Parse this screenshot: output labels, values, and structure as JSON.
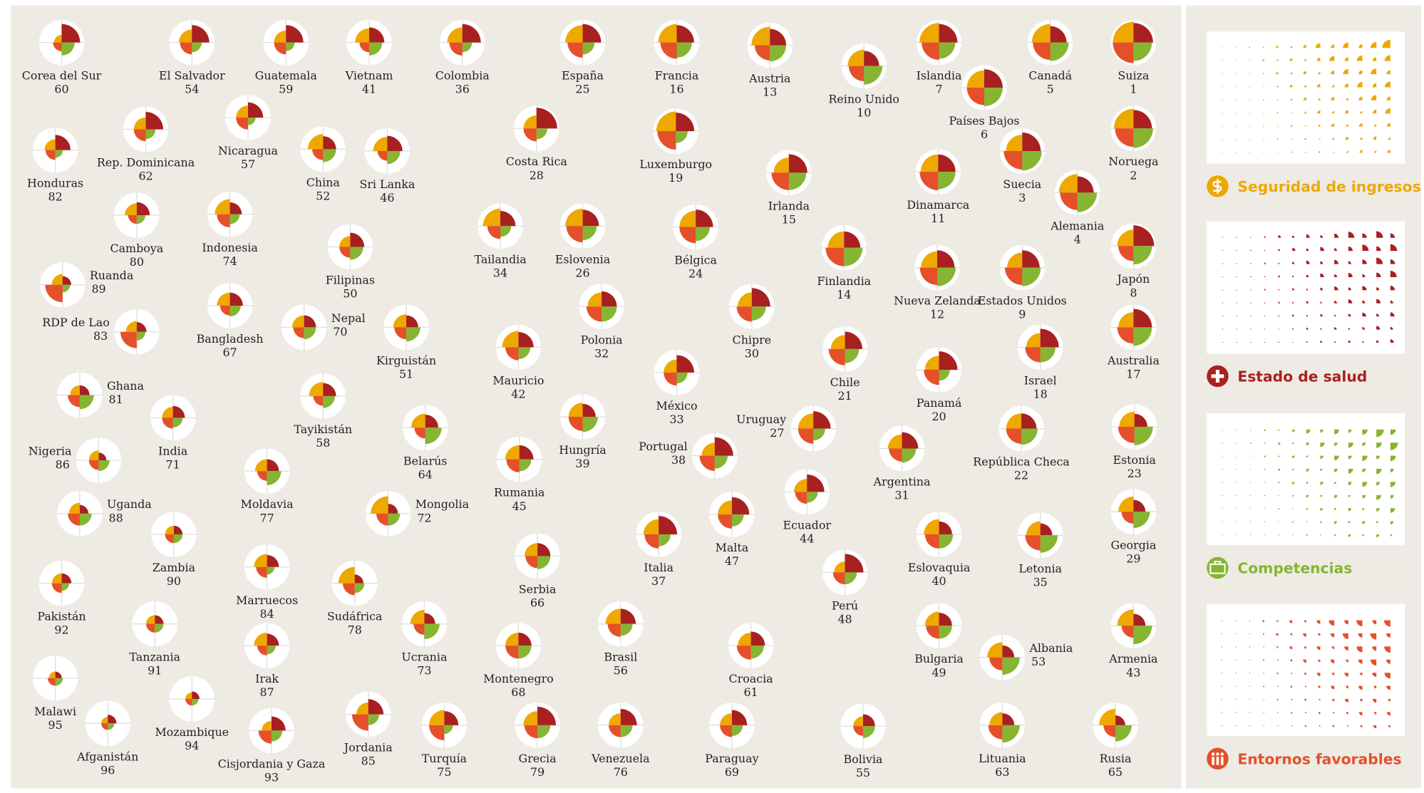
{
  "countries": [
    {
      "name": "Corea del Sur",
      "rank": 60,
      "values": [
        35,
        85,
        60,
        40
      ]
    },
    {
      "name": "El Salvador",
      "rank": 54,
      "values": [
        60,
        80,
        45,
        55
      ]
    },
    {
      "name": "Guatemala",
      "rank": 59,
      "values": [
        55,
        80,
        40,
        55
      ]
    },
    {
      "name": "Vietnam",
      "rank": 41,
      "values": [
        65,
        70,
        60,
        45
      ]
    },
    {
      "name": "Colombia",
      "rank": 36,
      "values": [
        70,
        85,
        45,
        60
      ]
    },
    {
      "name": "España",
      "rank": 25,
      "values": [
        80,
        85,
        55,
        70
      ]
    },
    {
      "name": "Francia",
      "rank": 16,
      "values": [
        85,
        80,
        70,
        75
      ]
    },
    {
      "name": "Austria",
      "rank": 13,
      "values": [
        85,
        75,
        75,
        70
      ]
    },
    {
      "name": "Reino Unido",
      "rank": 10,
      "values": [
        75,
        70,
        85,
        70
      ]
    },
    {
      "name": "Islandia",
      "rank": 7,
      "values": [
        90,
        85,
        75,
        80
      ]
    },
    {
      "name": "Países Bajos",
      "rank": 6,
      "values": [
        80,
        85,
        85,
        80
      ]
    },
    {
      "name": "Canadá",
      "rank": 5,
      "values": [
        85,
        75,
        85,
        80
      ]
    },
    {
      "name": "Suiza",
      "rank": 1,
      "values": [
        95,
        90,
        85,
        95
      ]
    },
    {
      "name": "Rep. Dominicana",
      "rank": 62,
      "values": [
        55,
        80,
        45,
        55
      ]
    },
    {
      "name": "Nicaragua",
      "rank": 57,
      "values": [
        55,
        70,
        35,
        55
      ]
    },
    {
      "name": "Honduras",
      "rank": 82,
      "values": [
        50,
        70,
        35,
        45
      ]
    },
    {
      "name": "China",
      "rank": 52,
      "values": [
        70,
        60,
        60,
        50
      ]
    },
    {
      "name": "Sri Lanka",
      "rank": 46,
      "values": [
        65,
        70,
        60,
        45
      ]
    },
    {
      "name": "Costa Rica",
      "rank": 28,
      "values": [
        60,
        95,
        50,
        60
      ]
    },
    {
      "name": "Luxemburgo",
      "rank": 19,
      "values": [
        90,
        85,
        55,
        85
      ]
    },
    {
      "name": "Irlanda",
      "rank": 15,
      "values": [
        70,
        85,
        80,
        80
      ]
    },
    {
      "name": "Dinamarca",
      "rank": 11,
      "values": [
        80,
        80,
        80,
        85
      ]
    },
    {
      "name": "Suecia",
      "rank": 3,
      "values": [
        75,
        85,
        90,
        85
      ]
    },
    {
      "name": "Noruega",
      "rank": 2,
      "values": [
        90,
        85,
        90,
        85
      ]
    },
    {
      "name": "Alemania",
      "rank": 4,
      "values": [
        85,
        75,
        90,
        80
      ]
    },
    {
      "name": "Camboya",
      "rank": 80,
      "values": [
        55,
        60,
        40,
        40
      ]
    },
    {
      "name": "Indonesia",
      "rank": 74,
      "values": [
        70,
        55,
        45,
        60
      ]
    },
    {
      "name": "Filipinas",
      "rank": 50,
      "values": [
        50,
        65,
        60,
        50
      ]
    },
    {
      "name": "Tailandia",
      "rank": 34,
      "values": [
        80,
        70,
        50,
        60
      ]
    },
    {
      "name": "Eslovenia",
      "rank": 26,
      "values": [
        80,
        75,
        65,
        75
      ]
    },
    {
      "name": "Bélgica",
      "rank": 24,
      "values": [
        75,
        80,
        65,
        75
      ]
    },
    {
      "name": "Finlandia",
      "rank": 14,
      "values": [
        75,
        75,
        85,
        85
      ]
    },
    {
      "name": "Nueva Zelanda",
      "rank": 12,
      "values": [
        75,
        80,
        85,
        80
      ]
    },
    {
      "name": "Estados Unidos",
      "rank": 9,
      "values": [
        70,
        80,
        85,
        80
      ]
    },
    {
      "name": "Japón",
      "rank": 8,
      "values": [
        75,
        95,
        85,
        70
      ]
    },
    {
      "name": "Ruanda",
      "rank": 89,
      "values": [
        50,
        40,
        35,
        80
      ]
    },
    {
      "name": "RDP de Lao",
      "rank": 83,
      "values": [
        50,
        45,
        40,
        75
      ]
    },
    {
      "name": "Bangladesh",
      "rank": 67,
      "values": [
        60,
        60,
        50,
        45
      ]
    },
    {
      "name": "Nepal",
      "rank": 70,
      "values": [
        55,
        55,
        55,
        50
      ]
    },
    {
      "name": "Kirguistán",
      "rank": 51,
      "values": [
        60,
        55,
        65,
        55
      ]
    },
    {
      "name": "Polonia",
      "rank": 32,
      "values": [
        65,
        70,
        70,
        70
      ]
    },
    {
      "name": "Chipre",
      "rank": 30,
      "values": [
        65,
        85,
        65,
        70
      ]
    },
    {
      "name": "Chile",
      "rank": 21,
      "values": [
        65,
        80,
        65,
        75
      ]
    },
    {
      "name": "Panamá",
      "rank": 20,
      "values": [
        65,
        85,
        50,
        70
      ]
    },
    {
      "name": "Israel",
      "rank": 18,
      "values": [
        65,
        85,
        70,
        70
      ]
    },
    {
      "name": "Australia",
      "rank": 17,
      "values": [
        70,
        85,
        85,
        75
      ]
    },
    {
      "name": "Mauricio",
      "rank": 42,
      "values": [
        75,
        70,
        55,
        60
      ]
    },
    {
      "name": "México",
      "rank": 33,
      "values": [
        60,
        80,
        50,
        60
      ]
    },
    {
      "name": "Ghana",
      "rank": 81,
      "values": [
        45,
        45,
        65,
        55
      ]
    },
    {
      "name": "India",
      "rank": 71,
      "values": [
        50,
        55,
        45,
        50
      ]
    },
    {
      "name": "Tayikistán",
      "rank": 58,
      "values": [
        65,
        60,
        55,
        45
      ]
    },
    {
      "name": "Hungría",
      "rank": 39,
      "values": [
        65,
        60,
        70,
        65
      ]
    },
    {
      "name": "Uruguay",
      "rank": 27,
      "values": [
        70,
        80,
        55,
        70
      ]
    },
    {
      "name": "Argentina",
      "rank": 31,
      "values": [
        65,
        75,
        65,
        60
      ]
    },
    {
      "name": "República Checa",
      "rank": 22,
      "values": [
        70,
        70,
        75,
        70
      ]
    },
    {
      "name": "Estonia",
      "rank": 23,
      "values": [
        70,
        60,
        85,
        75
      ]
    },
    {
      "name": "Nigeria",
      "rank": 86,
      "values": [
        45,
        35,
        50,
        45
      ]
    },
    {
      "name": "Belarús",
      "rank": 64,
      "values": [
        65,
        60,
        75,
        50
      ]
    },
    {
      "name": "Portugal",
      "rank": 38,
      "values": [
        60,
        85,
        60,
        70
      ]
    },
    {
      "name": "Rumania",
      "rank": 45,
      "values": [
        65,
        65,
        55,
        60
      ]
    },
    {
      "name": "Moldavia",
      "rank": 77,
      "values": [
        55,
        55,
        65,
        45
      ]
    },
    {
      "name": "Mongolia",
      "rank": 72,
      "values": [
        80,
        45,
        55,
        55
      ]
    },
    {
      "name": "Ecuador",
      "rank": 44,
      "values": [
        60,
        80,
        50,
        55
      ]
    },
    {
      "name": "Uganda",
      "rank": 88,
      "values": [
        50,
        40,
        55,
        55
      ]
    },
    {
      "name": "Zambia",
      "rank": 90,
      "values": [
        40,
        40,
        40,
        40
      ]
    },
    {
      "name": "Malta",
      "rank": 47,
      "values": [
        65,
        80,
        55,
        65
      ]
    },
    {
      "name": "Italia",
      "rank": 37,
      "values": [
        70,
        85,
        55,
        65
      ]
    },
    {
      "name": "Eslovaquia",
      "rank": 40,
      "values": [
        70,
        60,
        65,
        65
      ]
    },
    {
      "name": "Letonia",
      "rank": 35,
      "values": [
        65,
        55,
        80,
        70
      ]
    },
    {
      "name": "Georgia",
      "rank": 29,
      "values": [
        70,
        55,
        75,
        55
      ]
    },
    {
      "name": "Serbia",
      "rank": 66,
      "values": [
        60,
        60,
        60,
        55
      ]
    },
    {
      "name": "Marruecos",
      "rank": 84,
      "values": [
        60,
        55,
        35,
        50
      ]
    },
    {
      "name": "Sudáfrica",
      "rank": 78,
      "values": [
        75,
        40,
        45,
        55
      ]
    },
    {
      "name": "Perú",
      "rank": 48,
      "values": [
        50,
        85,
        55,
        55
      ]
    },
    {
      "name": "Pakistán",
      "rank": 92,
      "values": [
        45,
        45,
        35,
        45
      ]
    },
    {
      "name": "Tanzania",
      "rank": 91,
      "values": [
        40,
        40,
        40,
        40
      ]
    },
    {
      "name": "Ucrania",
      "rank": 73,
      "values": [
        65,
        50,
        70,
        50
      ]
    },
    {
      "name": "Brasil",
      "rank": 56,
      "values": [
        70,
        70,
        55,
        60
      ]
    },
    {
      "name": "Bulgaria",
      "rank": 49,
      "values": [
        65,
        60,
        60,
        60
      ]
    },
    {
      "name": "Albania",
      "rank": 53,
      "values": [
        70,
        55,
        80,
        60
      ]
    },
    {
      "name": "Armenia",
      "rank": 43,
      "values": [
        75,
        55,
        85,
        55
      ]
    },
    {
      "name": "Irak",
      "rank": 87,
      "values": [
        60,
        55,
        40,
        45
      ]
    },
    {
      "name": "Montenegro",
      "rank": 68,
      "values": [
        60,
        60,
        60,
        60
      ]
    },
    {
      "name": "Croacia",
      "rank": 61,
      "values": [
        60,
        65,
        60,
        65
      ]
    },
    {
      "name": "Malawi",
      "rank": 95,
      "values": [
        30,
        30,
        35,
        35
      ]
    },
    {
      "name": "Mozambique",
      "rank": 94,
      "values": [
        30,
        35,
        30,
        30
      ]
    },
    {
      "name": "Afganistán",
      "rank": 96,
      "values": [
        30,
        40,
        30,
        30
      ]
    },
    {
      "name": "Cisjordania y Gaza",
      "rank": 93,
      "values": [
        45,
        65,
        50,
        60
      ]
    },
    {
      "name": "Jordania",
      "rank": 85,
      "values": [
        55,
        70,
        50,
        75
      ]
    },
    {
      "name": "Turquía",
      "rank": 75,
      "values": [
        70,
        65,
        40,
        70
      ]
    },
    {
      "name": "Grecia",
      "rank": 79,
      "values": [
        65,
        85,
        60,
        60
      ]
    },
    {
      "name": "Venezuela",
      "rank": 76,
      "values": [
        55,
        75,
        55,
        55
      ]
    },
    {
      "name": "Paraguay",
      "rank": 69,
      "values": [
        55,
        70,
        50,
        55
      ]
    },
    {
      "name": "Bolivia",
      "rank": 55,
      "values": [
        45,
        55,
        55,
        45
      ]
    },
    {
      "name": "Lituania",
      "rank": 63,
      "values": [
        60,
        55,
        80,
        65
      ]
    },
    {
      "name": "Rusia",
      "rank": 65,
      "values": [
        75,
        45,
        75,
        55
      ]
    }
  ],
  "legend": [
    {
      "label": "Seguridad de ingresos",
      "color": "#eea800"
    },
    {
      "label": "Estado de salud",
      "color": "#a92020"
    },
    {
      "label": "Competencias",
      "color": "#86b532"
    },
    {
      "label": "Entornos favorables",
      "color": "#e5502a"
    }
  ]
}
